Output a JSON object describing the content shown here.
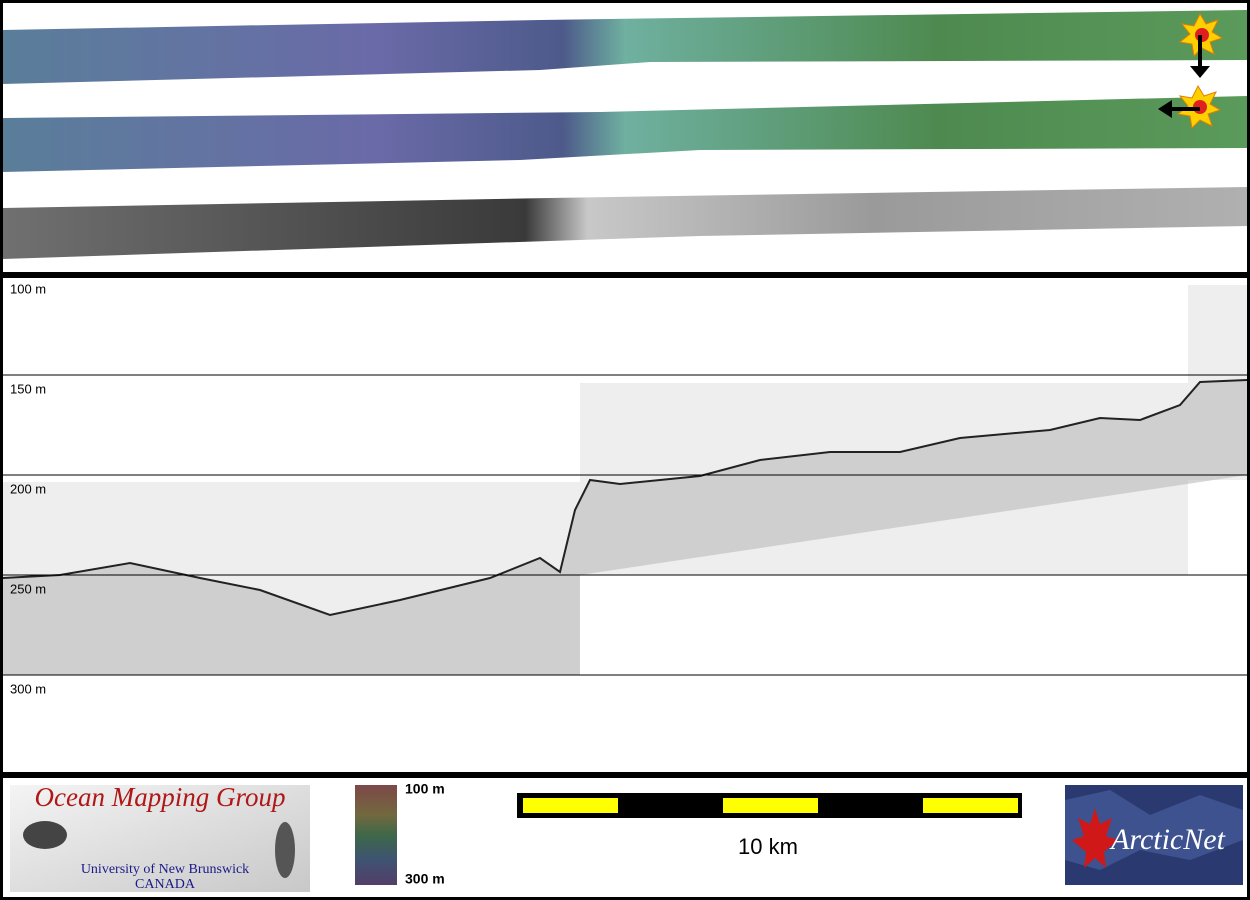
{
  "depth_axis": {
    "labels": [
      "100 m",
      "150 m",
      "200 m",
      "250 m",
      "300 m"
    ]
  },
  "logo": {
    "title": "Ocean Mapping Group",
    "university": "University of New Brunswick",
    "country": "CANADA"
  },
  "colorbar": {
    "top_label": "100 m",
    "bottom_label": "300 m"
  },
  "scale_bar": {
    "label": "10 km"
  },
  "partner_logo": {
    "label": "ArcticNet"
  }
}
